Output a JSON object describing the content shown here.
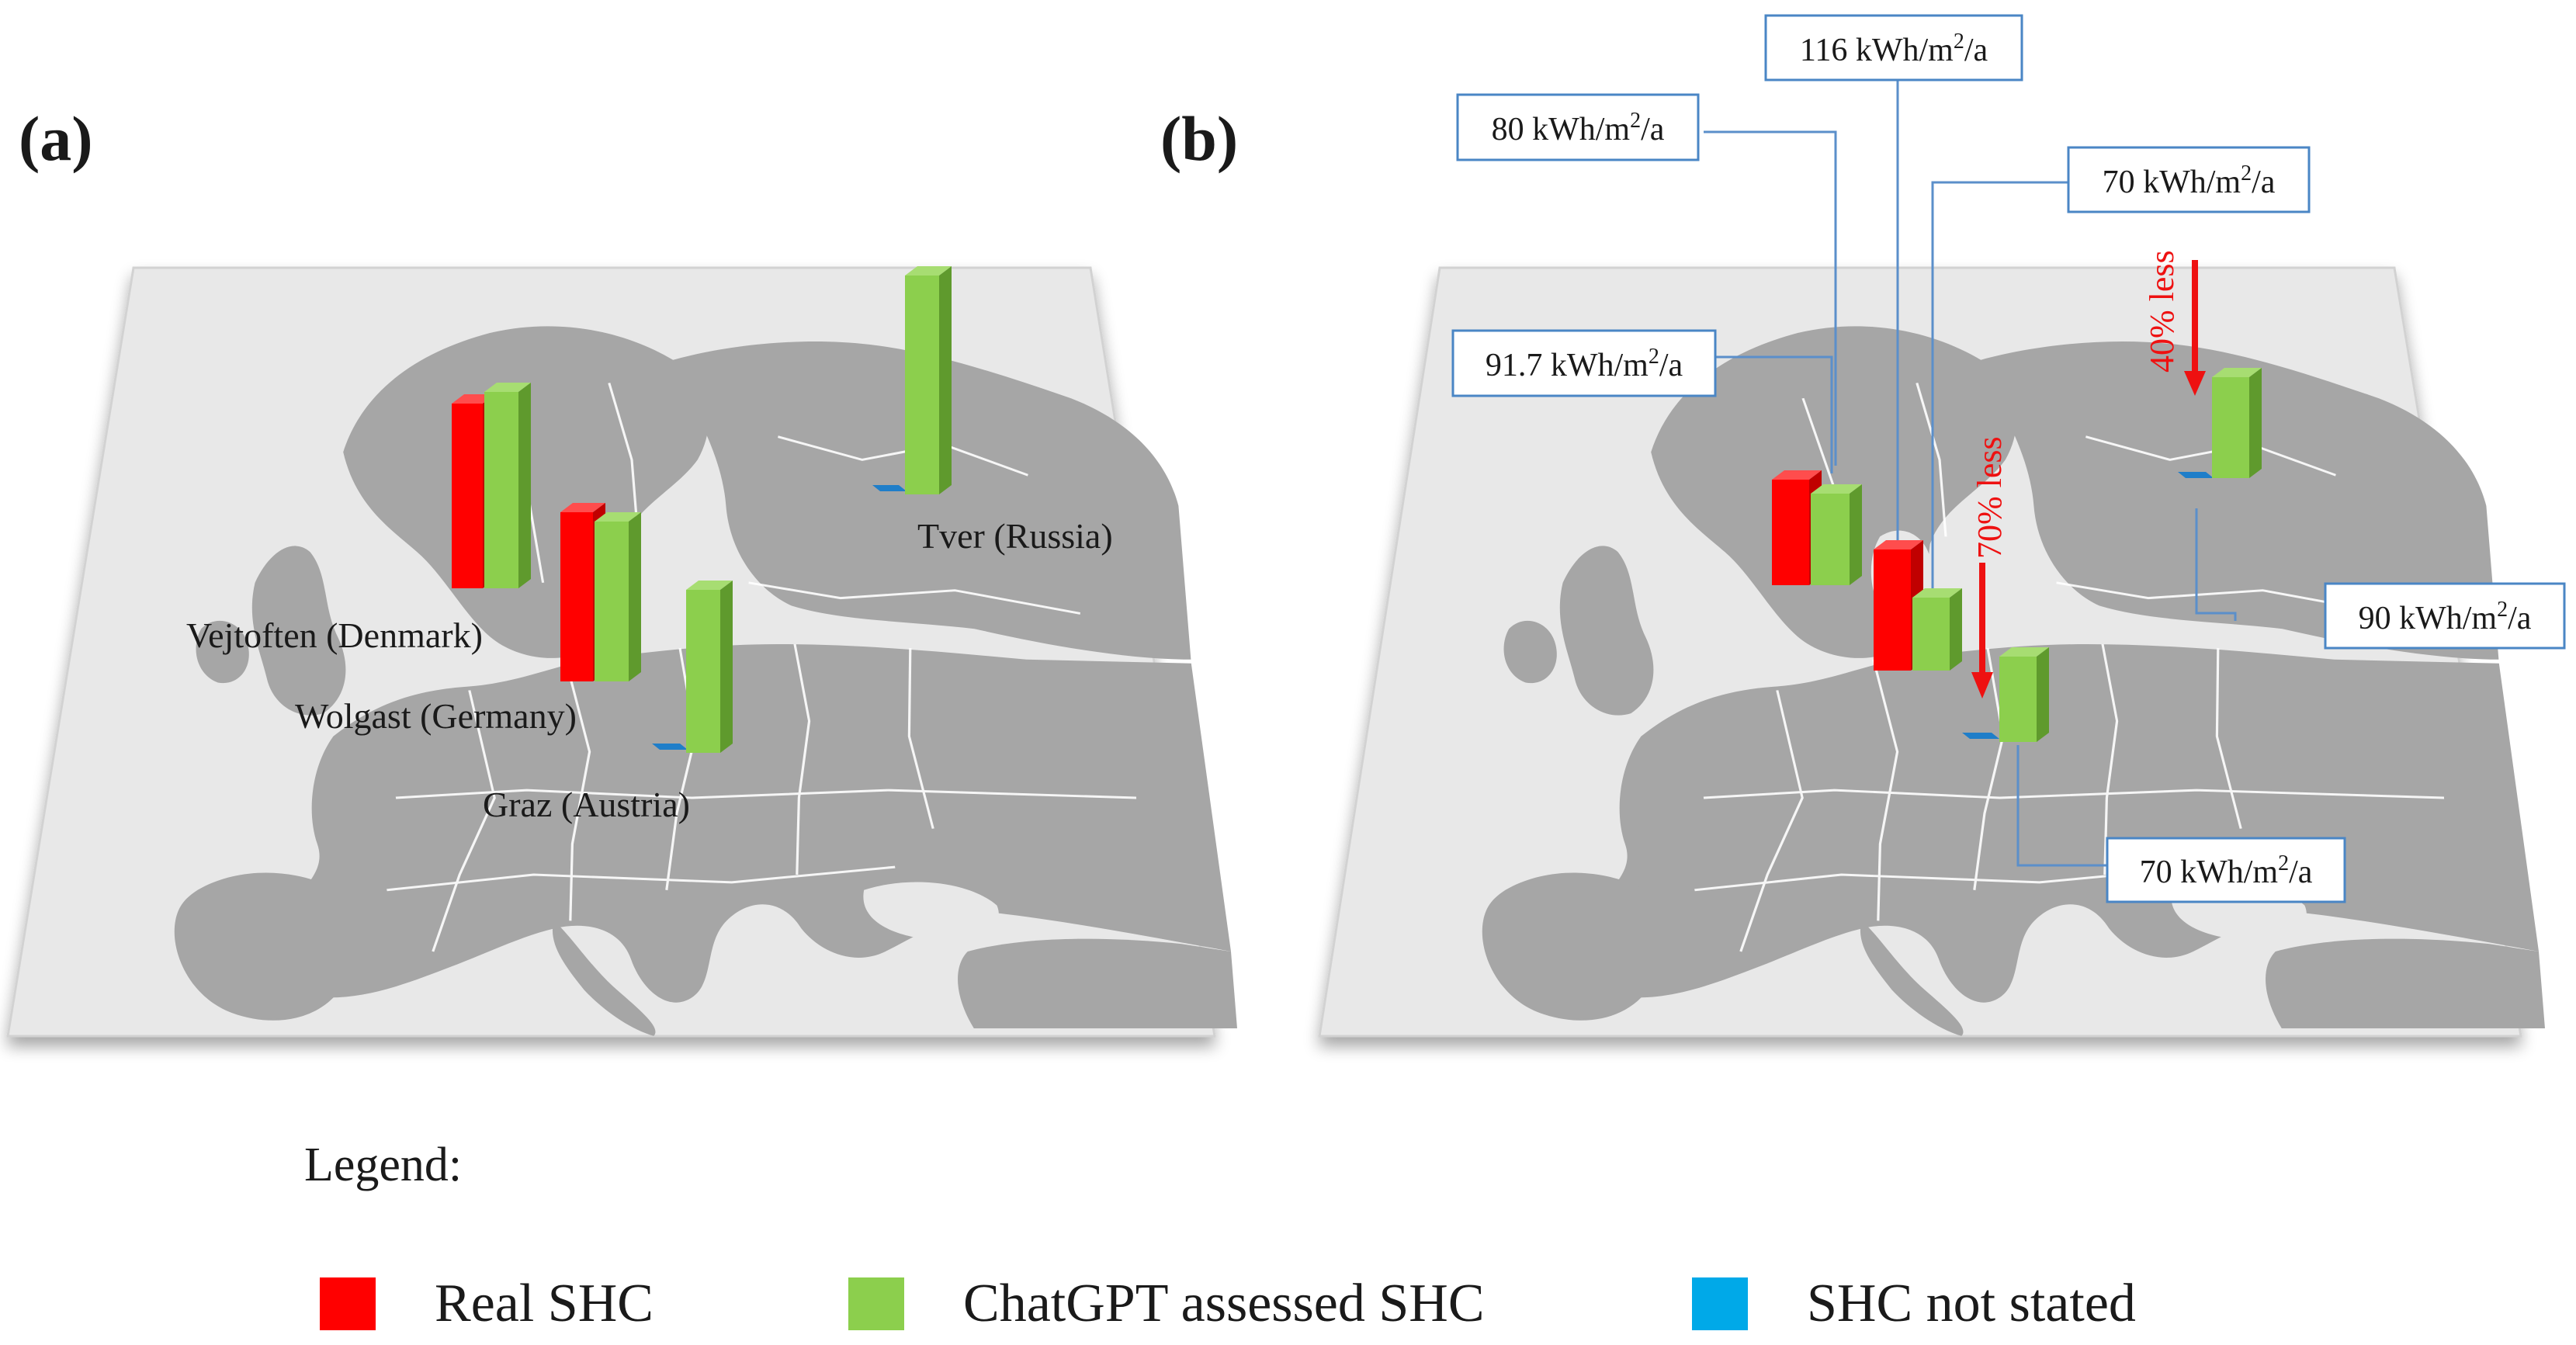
{
  "panels": [
    {
      "label": "(a)",
      "places": [
        "Vejtoften (Denmark)",
        "Wolgast (Germany)",
        "Graz (Austria)",
        "Tver (Russia)"
      ]
    },
    {
      "label": "(b)",
      "callouts": [
        {
          "value": "116",
          "unit_pre": " kWh/m",
          "sup": "2",
          "unit_post": "/a"
        },
        {
          "value": "80",
          "unit_pre": " kWh/m",
          "sup": "2",
          "unit_post": "/a"
        },
        {
          "value": "70",
          "unit_pre": " kWh/m",
          "sup": "2",
          "unit_post": "/a"
        },
        {
          "value": "91.7",
          "unit_pre": " kWh/m",
          "sup": "2",
          "unit_post": "/a"
        },
        {
          "value": "90",
          "unit_pre": " kWh/m",
          "sup": "2",
          "unit_post": "/a"
        },
        {
          "value": "70",
          "unit_pre": " kWh/m",
          "sup": "2",
          "unit_post": "/a"
        }
      ],
      "annotations": [
        "40% less",
        "70% less"
      ]
    }
  ],
  "legend": {
    "title": "Legend:",
    "items": [
      {
        "label": "Real SHC",
        "color": "#ff0000"
      },
      {
        "label": "ChatGPT assessed SHC",
        "color": "#8ccf4d"
      },
      {
        "label": "SHC not stated",
        "color": "#00a9e8"
      }
    ]
  },
  "colors": {
    "map_surface": "#e8e8e8",
    "land": "#a6a6a6",
    "borders": "#ffffff",
    "callout_border": "#4a86c5",
    "annotation_arrow": "#ee1111"
  }
}
